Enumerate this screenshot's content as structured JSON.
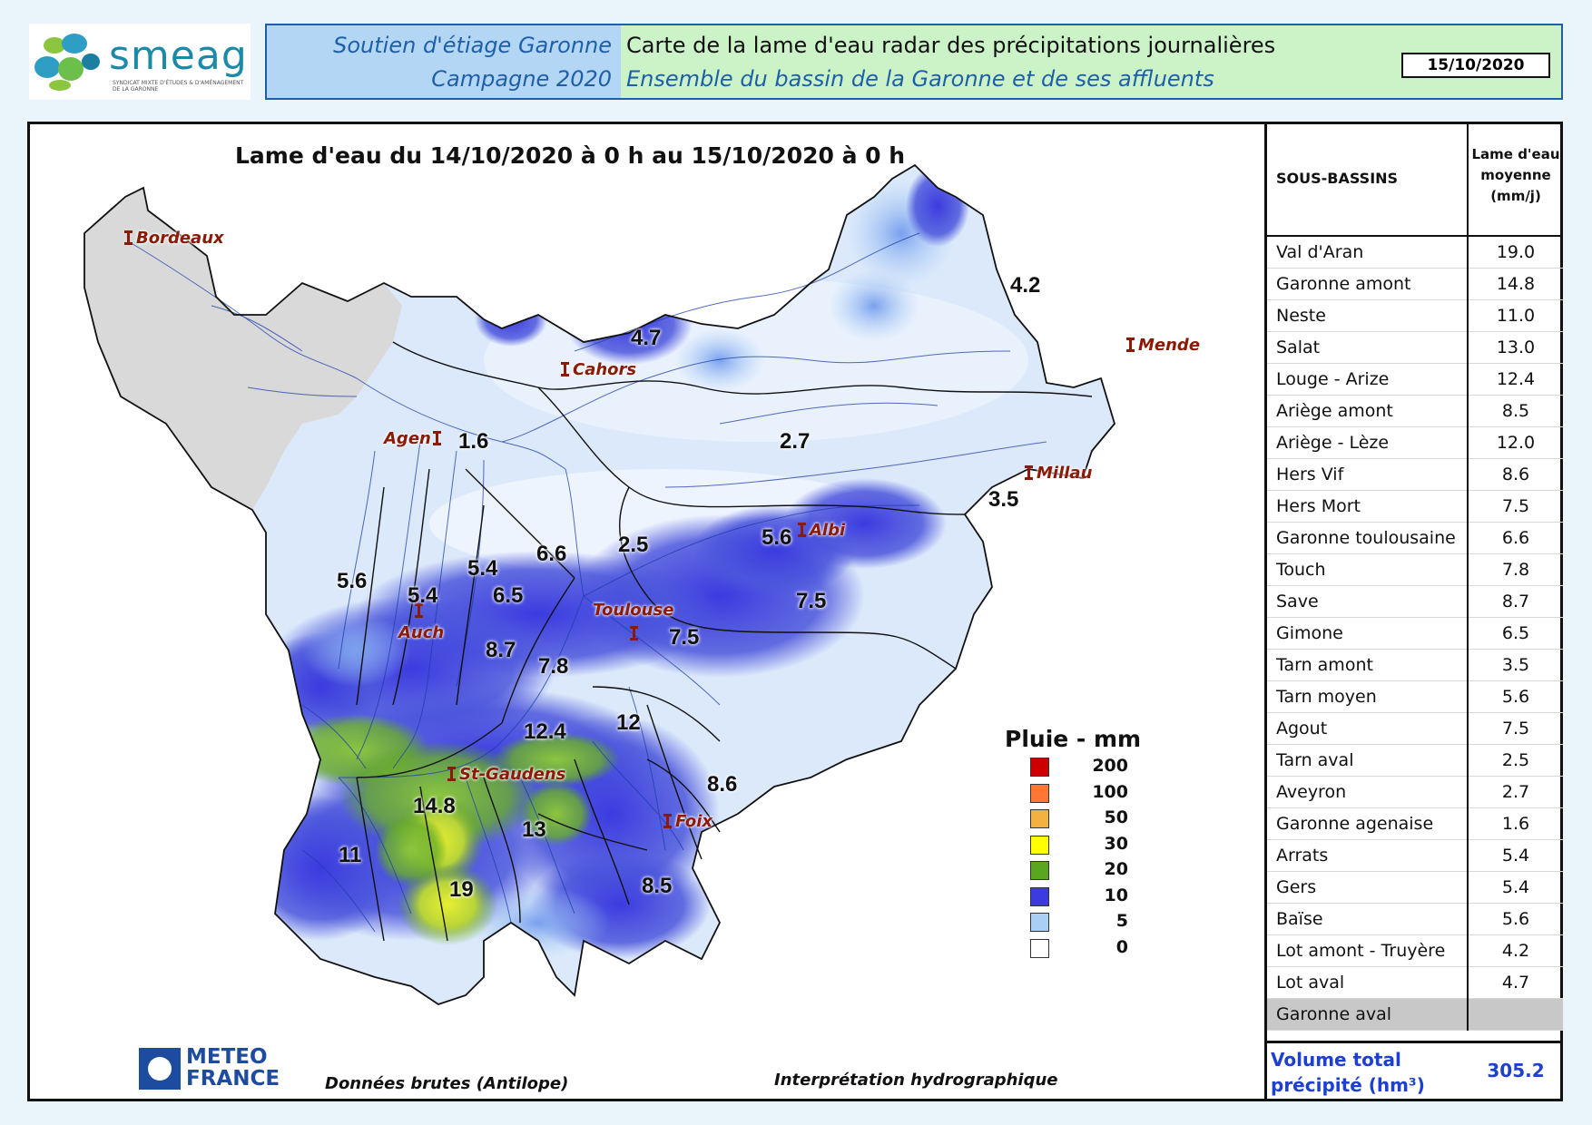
{
  "header": {
    "logo_text": "smeag",
    "logo_subtitle": "SYNDICAT MIXTE D'ÉTUDES & D'AMÉNAGEMENT DE LA GARONNE",
    "left_line1": "Soutien d'étiage Garonne",
    "left_line2": "Campagne 2020",
    "right_line1": "Carte de la lame d'eau radar des précipitations journalières",
    "right_line2": "Ensemble du bassin de la Garonne et de ses affluents",
    "date": "15/10/2020"
  },
  "map": {
    "title": "Lame d'eau du 14/10/2020 à 0 h au 15/10/2020 à 0 h",
    "cities": [
      "Bordeaux",
      "Mende",
      "Cahors",
      "Agen",
      "Millau",
      "Albi",
      "Toulouse",
      "Auch",
      "St-Gaudens",
      "Foix"
    ],
    "values": [
      "4.2",
      "4.7",
      "1.6",
      "2.7",
      "3.5",
      "5.6",
      "2.5",
      "6.6",
      "5.4",
      "5.6",
      "5.4",
      "6.5",
      "7.5",
      "7.5",
      "8.7",
      "7.8",
      "12.4",
      "12",
      "8.6",
      "14.8",
      "13",
      "11",
      "19",
      "8.5"
    ],
    "colors": {
      "no_data": "#d9d9d9",
      "light": "#dce9fb",
      "medium": "#8fb3f0",
      "blue": "#4b55dc",
      "green": "#73b82e",
      "yellow": "#d7e23a",
      "river": "#1c3ca8",
      "border": "#111111"
    }
  },
  "legend": {
    "title": "Pluie - mm",
    "items": [
      {
        "label": "200",
        "color": "#cc0000"
      },
      {
        "label": "100",
        "color": "#ff7733"
      },
      {
        "label": "50",
        "color": "#f5b042"
      },
      {
        "label": "30",
        "color": "#ffff00"
      },
      {
        "label": "20",
        "color": "#5aa61e"
      },
      {
        "label": "10",
        "color": "#3b3be0"
      },
      {
        "label": "5",
        "color": "#a9cff5"
      },
      {
        "label": "0",
        "color": "#ffffff"
      }
    ]
  },
  "footer": {
    "logo_line1": "METEO",
    "logo_line2": "FRANCE",
    "source": "Données brutes (Antilope)",
    "interpretation": "Interprétation hydrographique"
  },
  "table": {
    "col1": "SOUS-BASSINS",
    "col2_line1": "Lame d'eau",
    "col2_line2": "moyenne",
    "col2_line3": "(mm/j)",
    "rows": [
      {
        "name": "Val d'Aran",
        "value": "19.0"
      },
      {
        "name": "Garonne amont",
        "value": "14.8"
      },
      {
        "name": "Neste",
        "value": "11.0"
      },
      {
        "name": "Salat",
        "value": "13.0"
      },
      {
        "name": "Louge - Arize",
        "value": "12.4"
      },
      {
        "name": "Ariège amont",
        "value": "8.5"
      },
      {
        "name": "Ariège - Lèze",
        "value": "12.0"
      },
      {
        "name": "Hers Vif",
        "value": "8.6"
      },
      {
        "name": "Hers Mort",
        "value": "7.5"
      },
      {
        "name": "Garonne toulousaine",
        "value": "6.6"
      },
      {
        "name": "Touch",
        "value": "7.8"
      },
      {
        "name": "Save",
        "value": "8.7"
      },
      {
        "name": "Gimone",
        "value": "6.5"
      },
      {
        "name": "Tarn amont",
        "value": "3.5"
      },
      {
        "name": "Tarn moyen",
        "value": "5.6"
      },
      {
        "name": "Agout",
        "value": "7.5"
      },
      {
        "name": "Tarn aval",
        "value": "2.5"
      },
      {
        "name": "Aveyron",
        "value": "2.7"
      },
      {
        "name": "Garonne agenaise",
        "value": "1.6"
      },
      {
        "name": "Arrats",
        "value": "5.4"
      },
      {
        "name": "Gers",
        "value": "5.4"
      },
      {
        "name": "Baïse",
        "value": "5.6"
      },
      {
        "name": "Lot amont - Truyère",
        "value": "4.2"
      },
      {
        "name": "Lot aval",
        "value": "4.7"
      },
      {
        "name": "Garonne aval",
        "value": ""
      }
    ],
    "total_label": "Volume total précipité (hm³)",
    "total_value": "305.2"
  }
}
